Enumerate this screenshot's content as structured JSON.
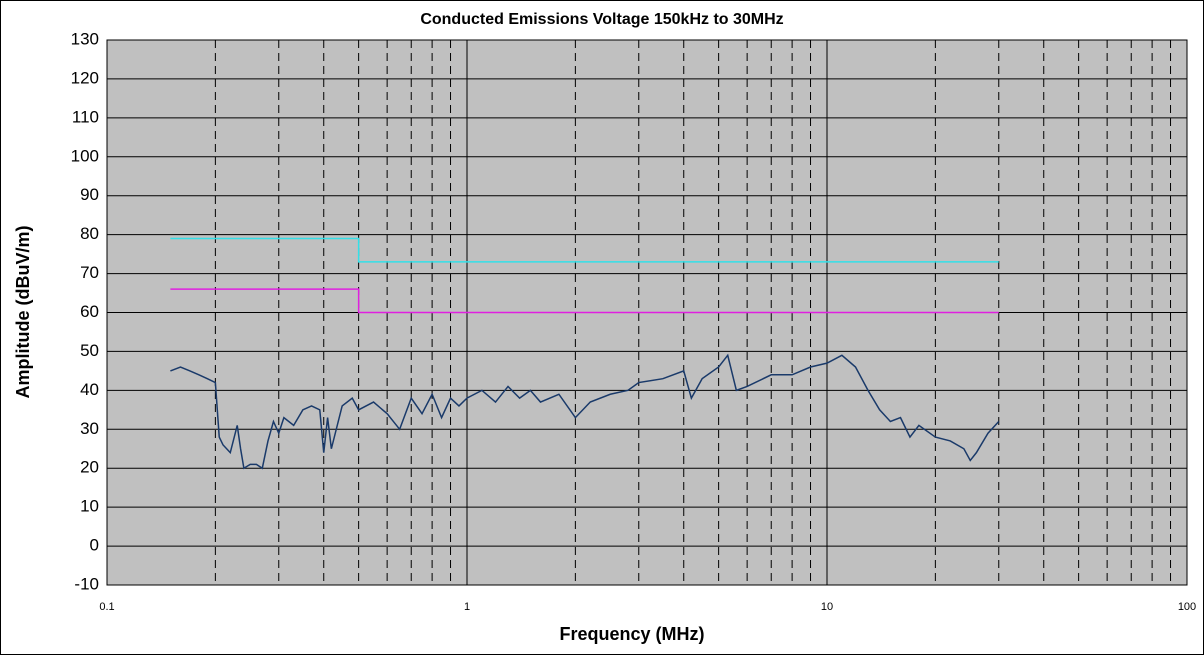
{
  "chart_data": {
    "type": "line",
    "title": "Conducted Emissions Voltage 150kHz to 30MHz",
    "x_label": "Frequency (MHz)",
    "y_label": "Amplitude (dBuV/m)",
    "log_x": true,
    "xlim": [
      0.1,
      100
    ],
    "xticks": [
      0.1,
      1,
      10,
      100
    ],
    "ylim": [
      -10,
      130
    ],
    "yticks": [
      -10,
      0,
      10,
      20,
      30,
      40,
      50,
      60,
      70,
      80,
      90,
      100,
      110,
      120,
      130
    ],
    "grid": true,
    "minor_grid": true,
    "background": "#c0c0c0",
    "series": [
      {
        "color": "#33e0e8",
        "x": [
          0.15,
          0.5,
          0.5,
          30
        ],
        "values": [
          79,
          79,
          73,
          73
        ]
      },
      {
        "color": "#e020e0",
        "x": [
          0.15,
          0.5,
          0.5,
          30
        ],
        "values": [
          66,
          66,
          60,
          60
        ]
      },
      {
        "color": "#1a3a6a",
        "x": [
          0.15,
          0.16,
          0.17,
          0.18,
          0.19,
          0.2,
          0.205,
          0.21,
          0.22,
          0.23,
          0.235,
          0.24,
          0.25,
          0.26,
          0.27,
          0.28,
          0.29,
          0.3,
          0.31,
          0.33,
          0.35,
          0.37,
          0.39,
          0.4,
          0.41,
          0.42,
          0.45,
          0.48,
          0.5,
          0.55,
          0.6,
          0.65,
          0.7,
          0.75,
          0.8,
          0.85,
          0.9,
          0.95,
          1.0,
          1.1,
          1.2,
          1.3,
          1.4,
          1.5,
          1.6,
          1.8,
          2.0,
          2.2,
          2.5,
          2.8,
          3.0,
          3.5,
          4.0,
          4.2,
          4.5,
          5.0,
          5.3,
          5.6,
          6.0,
          7.0,
          8.0,
          9.0,
          10,
          11,
          12,
          13,
          14,
          15,
          16,
          17,
          18,
          20,
          22,
          24,
          25,
          26,
          28,
          30
        ],
        "values": [
          45,
          46,
          45,
          44,
          43,
          42,
          28,
          26,
          24,
          31,
          25,
          20,
          21,
          21,
          20,
          27,
          32,
          29,
          33,
          31,
          35,
          36,
          35,
          24,
          33,
          25,
          36,
          38,
          35,
          37,
          34,
          30,
          38,
          34,
          39,
          33,
          38,
          36,
          38,
          40,
          37,
          41,
          38,
          40,
          37,
          39,
          33,
          37,
          39,
          40,
          42,
          43,
          45,
          38,
          43,
          46,
          49,
          40,
          41,
          44,
          44,
          46,
          47,
          49,
          46,
          40,
          35,
          32,
          33,
          28,
          31,
          28,
          27,
          25,
          22,
          24,
          29,
          32
        ]
      }
    ]
  }
}
